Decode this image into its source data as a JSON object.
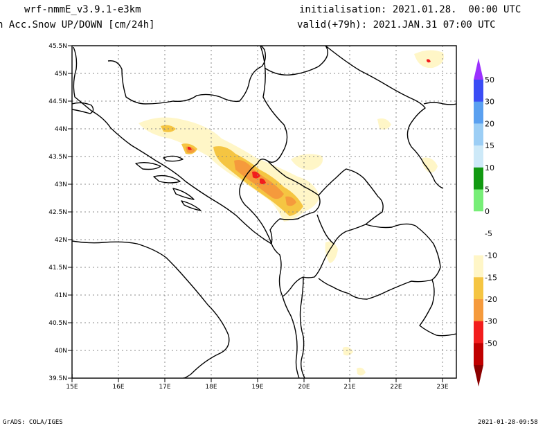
{
  "header": {
    "model": "wrf-nmmE_v3.9.1-e3km",
    "field": "n Acc.Snow UP/DOWN [cm/24h]",
    "init": "initialisation: 2021.01.28.  00:00 UTC",
    "valid": "valid(+79h): 2021.JAN.31 07:00 UTC"
  },
  "footer": {
    "credit": "GrADS: COLA/IGES",
    "timestamp": "2021-01-28-09:58"
  },
  "map": {
    "lon_range": [
      15,
      23.3
    ],
    "lat_range": [
      39.5,
      45.5
    ],
    "lon_ticks": [
      "15E",
      "16E",
      "17E",
      "18E",
      "19E",
      "20E",
      "21E",
      "22E",
      "23E"
    ],
    "lat_ticks": [
      "39.5N",
      "40N",
      "40.5N",
      "41N",
      "41.5N",
      "42N",
      "42.5N",
      "43N",
      "43.5N",
      "44N",
      "44.5N",
      "45N",
      "45.5N"
    ]
  },
  "colorbar": {
    "labels": [
      "50",
      "30",
      "20",
      "15",
      "10",
      "5",
      "0",
      "-5",
      "-10",
      "-15",
      "-20",
      "-30",
      "-50"
    ],
    "colors": [
      "#9b30ff",
      "#3a4df5",
      "#5aa0f0",
      "#9ccef5",
      "#cde9f8",
      "#119911",
      "#77ee77",
      "#ffffff",
      "#ffffff",
      "#fff6c7",
      "#f5c542",
      "#f59a3c",
      "#f21d1d",
      "#c00000",
      "#8b0000"
    ]
  }
}
